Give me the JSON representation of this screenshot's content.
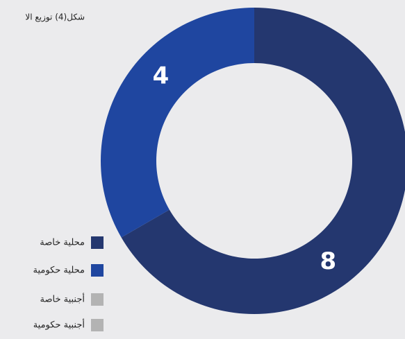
{
  "chart_data": {
    "type": "donut",
    "title": "شكل(4) توزيع الا",
    "categories": [
      "محلية خاصة",
      "محلية حكومية",
      "أجنبية خاصة",
      "أجنبية حكومية"
    ],
    "values": [
      8,
      4,
      0,
      0
    ],
    "colors": [
      "#24376f",
      "#1f46a0",
      "#b3b3b3",
      "#b3b3b3"
    ],
    "legend": "bottom-left"
  }
}
